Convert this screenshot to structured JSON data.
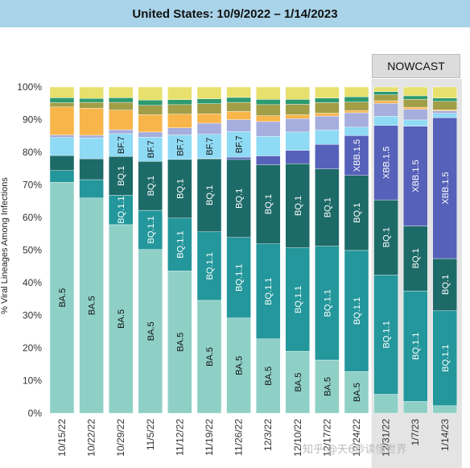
{
  "title": "United States: 10/9/2022 – 1/14/2023",
  "nowcast_label": "NOWCAST",
  "watermark": "知乎 @天6秒读懂世界",
  "colors": {
    "title_bar": "#a9d3e8",
    "nowcast_shade": "#e4e4e4",
    "BA.5": "#8fd0c6",
    "BQ.1.1": "#23979b",
    "BQ.1": "#1d6b68",
    "XBB.1.5": "#5661b9",
    "BF.7": "#8fdaf5",
    "other_blue": "#a5aedd",
    "orange": "#f8b54a",
    "olive": "#a19e47",
    "green": "#2d9a6f",
    "yellow": "#e7e06d"
  },
  "chart_data": {
    "type": "bar",
    "stacked": true,
    "ylabel": "% Viral Lineages Among Infections",
    "ylim": [
      0,
      100
    ],
    "yticks": [
      "0%",
      "10%",
      "20%",
      "30%",
      "40%",
      "50%",
      "60%",
      "70%",
      "80%",
      "90%",
      "100%"
    ],
    "categories": [
      "10/15/22",
      "10/22/22",
      "10/29/22",
      "11/5/22",
      "11/12/22",
      "11/19/22",
      "11/26/22",
      "12/3/22",
      "12/10/22",
      "12/17/22",
      "12/24/22",
      "12/31/22",
      "1/7/23",
      "1/14/23"
    ],
    "tick_labels": [
      "10/15/22",
      "10/22/22",
      "10/29/22",
      "11/5/22",
      "11/12/22",
      "11/19/22",
      "11/26/22",
      "12/3/22",
      "12/10/22",
      "12/17/22",
      "12/24/22",
      "12/31/22",
      "1/7/23",
      "1/14/23"
    ],
    "nowcast_from_index": 11,
    "series": [
      {
        "name": "BA.5",
        "color_key": "BA.5",
        "values": [
          70.8,
          66.0,
          57.8,
          50.2,
          43.6,
          34.6,
          29.2,
          22.8,
          19.0,
          16.3,
          12.8,
          5.8,
          3.6,
          2.3
        ]
      },
      {
        "name": "BQ.1.1",
        "color_key": "BQ.1.1",
        "values": [
          3.6,
          5.6,
          9.0,
          12.0,
          16.2,
          21.0,
          24.7,
          29.1,
          31.7,
          34.9,
          37.1,
          36.6,
          33.9,
          29.1
        ]
      },
      {
        "name": "BQ.1",
        "color_key": "BQ.1",
        "values": [
          4.6,
          6.4,
          11.9,
          15.0,
          18.0,
          22.4,
          23.9,
          24.3,
          25.8,
          23.7,
          23.0,
          23.0,
          19.9,
          16.0
        ]
      },
      {
        "name": "XBB.1.5",
        "color_key": "XBB.1.5",
        "values": [
          0.0,
          0.0,
          0.0,
          0.0,
          0.0,
          0.1,
          0.7,
          2.7,
          4.1,
          7.5,
          12.2,
          22.8,
          30.6,
          43.2
        ]
      },
      {
        "name": "BF.7",
        "color_key": "BF.7",
        "values": [
          5.5,
          6.4,
          7.0,
          7.4,
          7.5,
          7.4,
          7.8,
          6.0,
          5.6,
          4.4,
          2.6,
          2.8,
          1.9,
          1.3
        ]
      },
      {
        "name": "",
        "color_key": "other_blue",
        "values": [
          0.8,
          0.8,
          1.2,
          1.6,
          2.2,
          3.4,
          3.7,
          4.5,
          4.1,
          4.3,
          4.4,
          4.0,
          3.3,
          0.8
        ]
      },
      {
        "name": "",
        "color_key": "orange",
        "values": [
          8.6,
          8.3,
          6.0,
          5.3,
          4.2,
          2.9,
          2.5,
          1.8,
          1.2,
          0.9,
          0.7,
          0.8,
          0.6,
          0.3
        ]
      },
      {
        "name": "",
        "color_key": "olive",
        "values": [
          1.3,
          1.8,
          2.4,
          2.9,
          2.9,
          3.1,
          2.8,
          3.4,
          3.2,
          3.2,
          2.6,
          1.8,
          2.4,
          2.6
        ]
      },
      {
        "name": "",
        "color_key": "green",
        "values": [
          1.5,
          1.2,
          1.4,
          1.6,
          1.5,
          1.5,
          1.5,
          1.6,
          1.5,
          1.4,
          1.6,
          1.0,
          1.1,
          1.0
        ]
      },
      {
        "name": "",
        "color_key": "yellow",
        "values": [
          3.3,
          3.5,
          3.3,
          4.0,
          3.9,
          3.6,
          3.2,
          3.8,
          3.8,
          3.4,
          3.0,
          1.4,
          2.7,
          3.4
        ]
      }
    ],
    "bar_labels": [
      {
        "bar": 0,
        "series": "BA.5",
        "text": "BA.5"
      },
      {
        "bar": 1,
        "series": "BA.5",
        "text": "BA.5"
      },
      {
        "bar": 2,
        "series": "BA.5",
        "text": "BA.5"
      },
      {
        "bar": 3,
        "series": "BA.5",
        "text": "BA.5"
      },
      {
        "bar": 4,
        "series": "BA.5",
        "text": "BA.5"
      },
      {
        "bar": 5,
        "series": "BA.5",
        "text": "BA.5"
      },
      {
        "bar": 6,
        "series": "BA.5",
        "text": "BA.5"
      },
      {
        "bar": 7,
        "series": "BA.5",
        "text": "BA.5"
      },
      {
        "bar": 8,
        "series": "BA.5",
        "text": "BA.5"
      },
      {
        "bar": 9,
        "series": "BA.5",
        "text": "BA.5"
      },
      {
        "bar": 10,
        "series": "BA.5",
        "text": "BA.5"
      },
      {
        "bar": 2,
        "series": "BQ.1.1",
        "text": "BQ.1.1"
      },
      {
        "bar": 3,
        "series": "BQ.1.1",
        "text": "BQ.1.1"
      },
      {
        "bar": 4,
        "series": "BQ.1.1",
        "text": "BQ.1.1"
      },
      {
        "bar": 5,
        "series": "BQ.1.1",
        "text": "BQ.1.1"
      },
      {
        "bar": 6,
        "series": "BQ.1.1",
        "text": "BQ.1.1"
      },
      {
        "bar": 7,
        "series": "BQ.1.1",
        "text": "BQ.1.1"
      },
      {
        "bar": 8,
        "series": "BQ.1.1",
        "text": "BQ.1.1"
      },
      {
        "bar": 9,
        "series": "BQ.1.1",
        "text": "BQ.1.1"
      },
      {
        "bar": 10,
        "series": "BQ.1.1",
        "text": "BQ.1.1"
      },
      {
        "bar": 11,
        "series": "BQ.1.1",
        "text": "BQ.1.1"
      },
      {
        "bar": 12,
        "series": "BQ.1.1",
        "text": "BQ.1.1"
      },
      {
        "bar": 13,
        "series": "BQ.1.1",
        "text": "BQ.1.1"
      },
      {
        "bar": 2,
        "series": "BQ.1",
        "text": "BQ.1"
      },
      {
        "bar": 3,
        "series": "BQ.1",
        "text": "BQ.1"
      },
      {
        "bar": 4,
        "series": "BQ.1",
        "text": "BQ.1"
      },
      {
        "bar": 5,
        "series": "BQ.1",
        "text": "BQ.1"
      },
      {
        "bar": 6,
        "series": "BQ.1",
        "text": "BQ.1"
      },
      {
        "bar": 7,
        "series": "BQ.1",
        "text": "BQ.1"
      },
      {
        "bar": 8,
        "series": "BQ.1",
        "text": "BQ.1"
      },
      {
        "bar": 9,
        "series": "BQ.1",
        "text": "BQ.1"
      },
      {
        "bar": 10,
        "series": "BQ.1",
        "text": "BQ.1"
      },
      {
        "bar": 11,
        "series": "BQ.1",
        "text": "BQ.1"
      },
      {
        "bar": 12,
        "series": "BQ.1",
        "text": "BQ.1"
      },
      {
        "bar": 13,
        "series": "BQ.1",
        "text": "BQ.1"
      },
      {
        "bar": 2,
        "series": "BF.7",
        "text": "BF.7"
      },
      {
        "bar": 3,
        "series": "BF.7",
        "text": "BF.7"
      },
      {
        "bar": 4,
        "series": "BF.7",
        "text": "BF.7"
      },
      {
        "bar": 5,
        "series": "BF.7",
        "text": "BF.7"
      },
      {
        "bar": 6,
        "series": "BF.7",
        "text": "BF.7"
      },
      {
        "bar": 10,
        "series": "XBB.1.5",
        "text": "XBB.1.5"
      },
      {
        "bar": 11,
        "series": "XBB.1.5",
        "text": "XBB.1.5"
      },
      {
        "bar": 12,
        "series": "XBB.1.5",
        "text": "XBB.1.5"
      },
      {
        "bar": 13,
        "series": "XBB.1.5",
        "text": "XBB.1.5"
      }
    ],
    "grid": false,
    "legend": "none"
  }
}
